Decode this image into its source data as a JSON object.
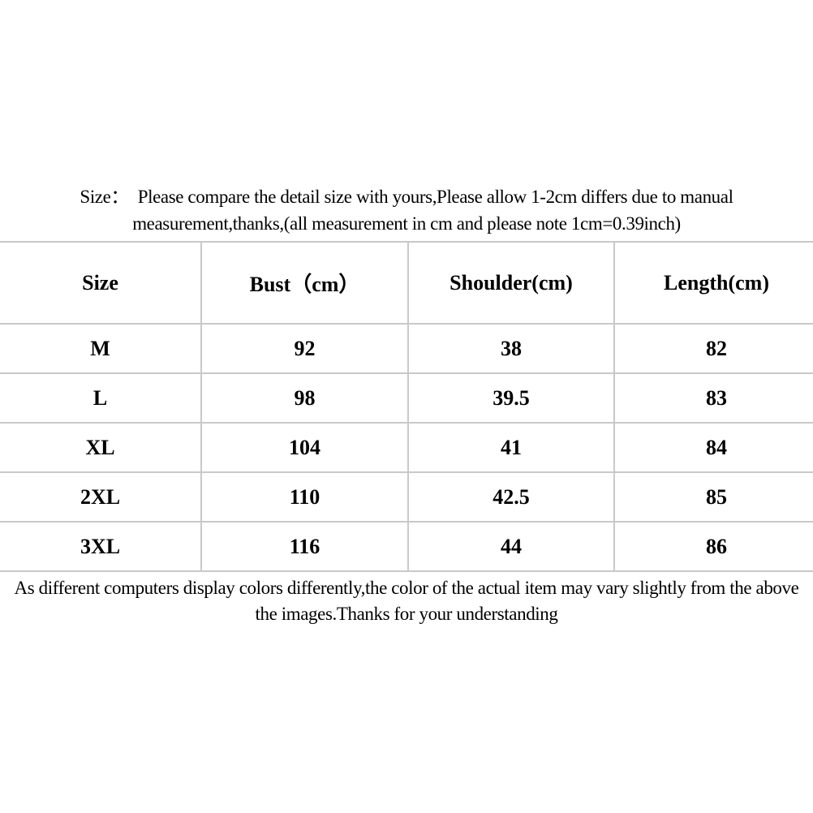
{
  "intro": {
    "line1": "Size：  Please compare the detail size with yours,Please allow 1-2cm differs due to manual",
    "line2": "measurement,thanks,(all measurement in cm and please note 1cm=0.39inch)"
  },
  "size_table": {
    "columns": [
      "Size",
      "Bust（cm）",
      "Shoulder(cm)",
      "Length(cm)"
    ],
    "rows": [
      [
        "M",
        "92",
        "38",
        "82"
      ],
      [
        "L",
        "98",
        "39.5",
        "83"
      ],
      [
        "XL",
        "104",
        "41",
        "84"
      ],
      [
        "2XL",
        "110",
        "42.5",
        "85"
      ],
      [
        "3XL",
        "116",
        "44",
        "86"
      ]
    ]
  },
  "footer": {
    "line1": "As different computers display colors differently,the color of the actual item may vary slightly from the above",
    "line2": "the images.Thanks for your understanding"
  },
  "colors": {
    "text": "#000000",
    "table_border": "#c9c9c9",
    "background": "#ffffff"
  }
}
